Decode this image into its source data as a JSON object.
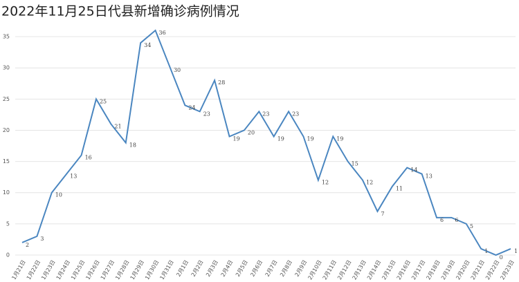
{
  "chart_data": {
    "type": "line",
    "title": "2022年11月25日代县新增确诊病例情况",
    "categories": [
      "1月21日",
      "1月22日",
      "1月23日",
      "1月24日",
      "1月25日",
      "1月26日",
      "1月27日",
      "1月28日",
      "1月29日",
      "1月30日",
      "1月31日",
      "2月1日",
      "2月2日",
      "2月3日",
      "2月4日",
      "2月5日",
      "2月6日",
      "2月7日",
      "2月8日",
      "2月9日",
      "2月10日",
      "2月11日",
      "2月12日",
      "2月13日",
      "2月14日",
      "2月15日",
      "2月16日",
      "2月17日",
      "2月18日",
      "2月19日",
      "2月20日",
      "2月21日",
      "2月22日",
      "2月23日"
    ],
    "values": [
      2,
      3,
      10,
      13,
      16,
      25,
      21,
      18,
      34,
      36,
      30,
      24,
      23,
      28,
      19,
      20,
      23,
      19,
      23,
      19,
      12,
      19,
      15,
      12,
      7,
      11,
      14,
      13,
      6,
      6,
      5,
      1,
      0,
      1
    ],
    "color": "#4a86c0",
    "ylim": [
      0,
      37
    ],
    "yticks": [
      0,
      5,
      10,
      15,
      20,
      25,
      30,
      35
    ],
    "grid": true
  }
}
